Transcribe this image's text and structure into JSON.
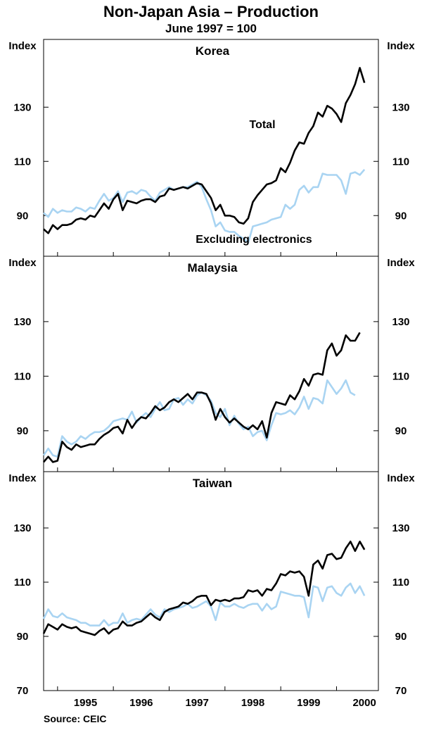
{
  "title": "Non-Japan Asia – Production",
  "subtitle": "June 1997 = 100",
  "source": "Source: CEIC",
  "chart_data": {
    "type": "line",
    "x_tick_labels": [
      "1995",
      "1996",
      "1997",
      "1998",
      "1999",
      "2000"
    ],
    "x_range": [
      1994.75,
      2000.75
    ],
    "colors": {
      "total": "#000000",
      "excluding_electronics": "#a9d4f2"
    },
    "grid": false,
    "panels": [
      {
        "title": "Korea",
        "y_label_left": "Index",
        "y_label_right": "Index",
        "y_ticks": [
          90,
          110,
          130
        ],
        "ylim": [
          75,
          135
        ],
        "annotations": [
          "Total",
          "Excluding electronics"
        ],
        "series": [
          {
            "name": "Total",
            "x_start": 1994.75,
            "step": 0.0833333,
            "values": [
              85,
              83.5,
              86.5,
              85,
              86.5,
              86.5,
              87,
              88.5,
              89,
              88.5,
              90,
              89.5,
              92,
              94.5,
              92.5,
              96,
              98,
              92,
              95.5,
              95,
              94.5,
              95.5,
              96,
              96,
              95,
              97,
              97.5,
              100,
              99.5,
              100,
              100.5,
              100,
              101,
              102,
              101.5,
              99,
              96.5,
              92,
              94,
              90,
              90,
              89.5,
              87.5,
              87,
              89,
              95,
              97.5,
              99.5,
              101.5,
              102,
              103,
              107.5,
              106,
              109.5,
              114,
              117,
              116.5,
              120.5,
              123,
              128,
              126.5,
              130.5,
              129.5,
              127.5,
              124.5,
              131.5,
              134.5,
              138.5,
              144.5,
              139
            ]
          },
          {
            "name": "Excluding electronics",
            "x_start": 1994.75,
            "step": 0.0833333,
            "values": [
              91,
              89.5,
              92.5,
              91,
              92,
              91.5,
              91.5,
              93,
              92.5,
              91.5,
              93,
              92.5,
              95.5,
              98,
              95.5,
              96.5,
              99,
              95,
              98.5,
              99,
              98,
              99.5,
              99,
              97,
              95.5,
              98.5,
              99.5,
              100.5,
              99.5,
              100,
              100.5,
              100.5,
              101.5,
              102.5,
              100.5,
              96,
              92,
              86,
              87.5,
              84.5,
              84,
              84,
              82.5,
              81.5,
              80,
              86,
              86.5,
              87,
              87.5,
              88.5,
              89,
              89.5,
              94,
              92.5,
              94,
              99.5,
              101,
              98.5,
              100.5,
              100.5,
              105.5,
              105,
              105,
              105,
              103,
              98,
              105.5,
              106,
              105,
              107
            ]
          }
        ]
      },
      {
        "title": "Malaysia",
        "y_label_left": "Index",
        "y_label_right": "Index",
        "y_ticks": [
          90,
          110,
          130
        ],
        "ylim": [
          75,
          135
        ],
        "series": [
          {
            "name": "Total",
            "x_start": 1994.75,
            "step": 0.0833333,
            "values": [
              78.5,
              80.5,
              78.5,
              79,
              86,
              84,
              83,
              85,
              84,
              84.5,
              85,
              85,
              87,
              88.5,
              89.5,
              91,
              91.5,
              89,
              94,
              91,
              93.5,
              95,
              94.5,
              96.5,
              99,
              97.5,
              98.5,
              100.5,
              101.5,
              100.5,
              102,
              103.5,
              101.5,
              104,
              104,
              103.5,
              100,
              94,
              98,
              95,
              93,
              94.5,
              93,
              91.5,
              90.5,
              92,
              90.5,
              93.5,
              87.5,
              96.5,
              100.5,
              100,
              99.5,
              103,
              101.5,
              104.5,
              109,
              106.5,
              110.5,
              111,
              110.5,
              119.5,
              122,
              117.5,
              119.5,
              125,
              123,
              123,
              126
            ]
          },
          {
            "name": "Excluding electronics",
            "x_start": 1994.75,
            "step": 0.0833333,
            "values": [
              81,
              83.5,
              81,
              80.5,
              88,
              86,
              85,
              86,
              88,
              87,
              88.5,
              89.5,
              89.5,
              90,
              91.5,
              93.5,
              94,
              94.5,
              94,
              97,
              93,
              95,
              96.5,
              95,
              98,
              100.5,
              97.5,
              98,
              101.5,
              102,
              99.5,
              101.5,
              100,
              103,
              104,
              103,
              101,
              96.5,
              95,
              98,
              92,
              95.5,
              92.5,
              90.5,
              91.5,
              88,
              89.5,
              90,
              86.5,
              92,
              96.5,
              96,
              96.5,
              97.5,
              96,
              98.5,
              102.5,
              98,
              102,
              101.5,
              100,
              108.5,
              106,
              103.5,
              105.5,
              108.5,
              104,
              103
            ]
          }
        ]
      },
      {
        "title": "Taiwan",
        "y_label_left": "Index",
        "y_label_right": "Index",
        "y_ticks": [
          70,
          90,
          110,
          130
        ],
        "ylim": [
          70,
          135
        ],
        "series": [
          {
            "name": "Total",
            "x_start": 1994.75,
            "step": 0.0833333,
            "values": [
              91,
              94.5,
              93.5,
              92.5,
              94.5,
              93.5,
              93,
              93.5,
              92,
              91.5,
              91,
              90.5,
              92,
              93,
              91,
              92.5,
              93,
              95.5,
              94,
              94,
              95,
              95.5,
              97,
              98.5,
              97,
              96,
              99,
              100,
              100.5,
              101,
              102.5,
              102,
              103,
              104.5,
              105,
              105,
              101.5,
              103.5,
              103,
              103.5,
              103,
              104,
              104,
              104.5,
              107,
              106.5,
              107,
              105,
              107.5,
              107,
              109.5,
              113,
              112.5,
              114,
              113.5,
              114,
              112,
              105,
              116.5,
              118,
              115,
              120,
              120.5,
              118.5,
              119,
              122.5,
              125,
              121.5,
              125,
              122
            ]
          },
          {
            "name": "Excluding electronics",
            "x_start": 1994.75,
            "step": 0.0833333,
            "values": [
              96.5,
              100,
              97.5,
              97,
              98.5,
              97,
              96.5,
              96,
              95,
              95,
              94,
              94,
              94,
              96,
              94,
              95,
              95,
              98.5,
              95,
              96,
              96.5,
              96,
              98,
              100,
              98,
              97,
              100,
              99,
              100,
              100.5,
              101,
              102,
              100.5,
              101,
              102,
              103,
              101,
              96,
              102.5,
              101,
              101,
              102,
              101,
              100.5,
              101.5,
              102,
              102,
              99.5,
              102,
              100,
              101,
              106.5,
              106,
              105.5,
              105,
              105,
              104.5,
              97,
              108.5,
              108,
              103,
              108,
              108.5,
              106,
              105,
              108,
              109.5,
              106,
              108.5,
              105
            ]
          }
        ]
      }
    ]
  }
}
